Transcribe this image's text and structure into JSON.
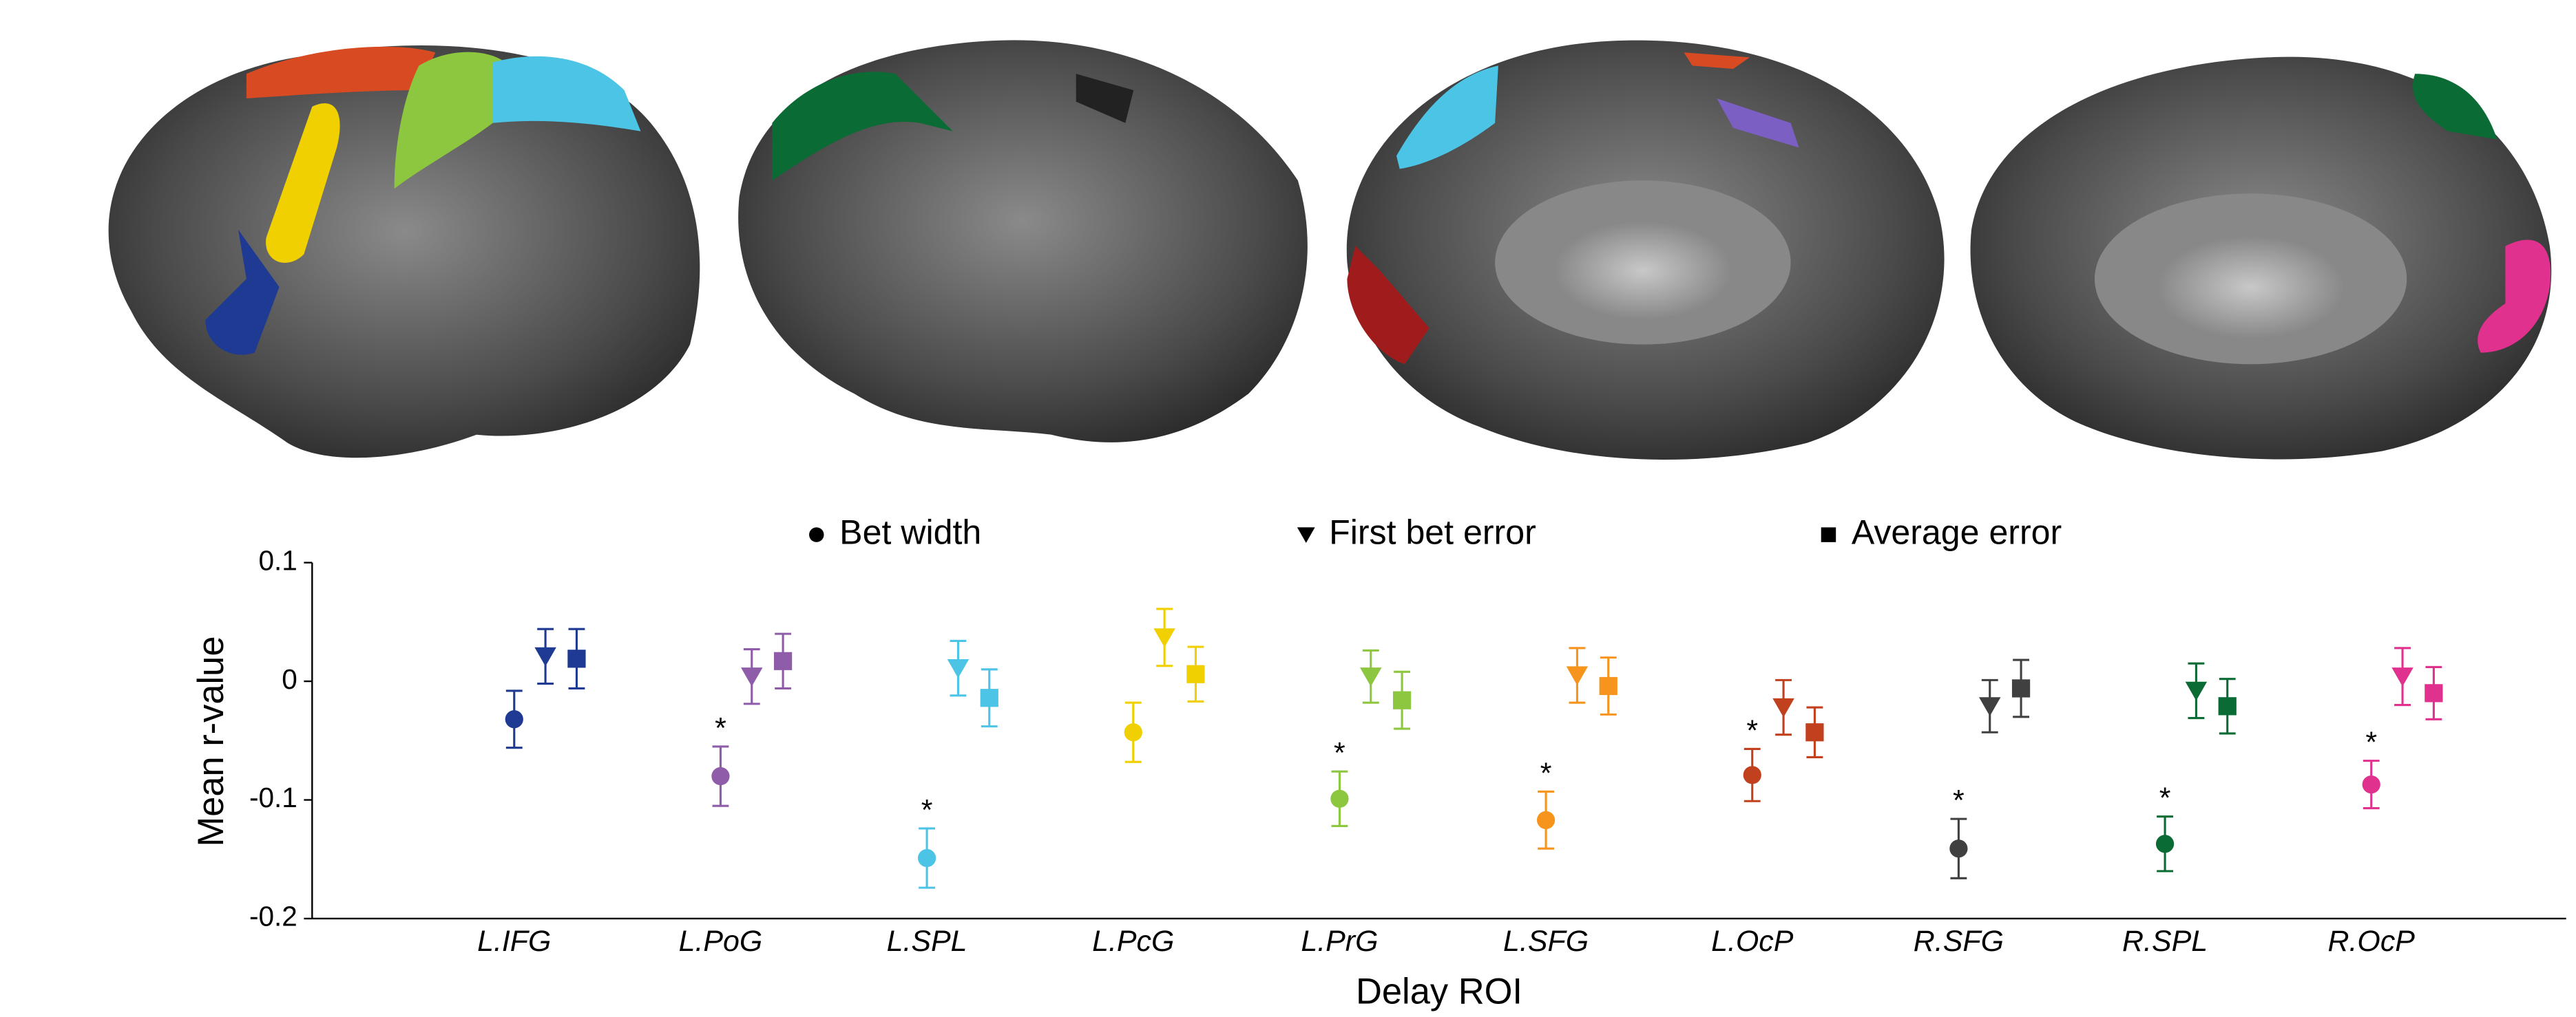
{
  "chart_data": {
    "type": "errorbar",
    "categories": [
      "L.IFG",
      "L.PoG",
      "L.SPL",
      "L.PcG",
      "L.PrG",
      "L.SFG",
      "L.OcP",
      "R.SFG",
      "R.SPL",
      "R.OcP"
    ],
    "colors": [
      "#1f3a93",
      "#8e5ca8",
      "#4cc4e6",
      "#f0d000",
      "#8dc63f",
      "#f7941d",
      "#c1401d",
      "#404040",
      "#0b6b35",
      "#e0318f"
    ],
    "series": [
      {
        "name": "Bet width",
        "marker": "circle",
        "values": [
          -0.032,
          -0.08,
          -0.149,
          -0.043,
          -0.099,
          -0.117,
          -0.079,
          -0.141,
          -0.137,
          -0.087
        ],
        "errors": [
          0.024,
          0.025,
          0.025,
          0.025,
          0.023,
          0.024,
          0.022,
          0.025,
          0.023,
          0.02
        ],
        "significant": [
          false,
          true,
          true,
          false,
          true,
          true,
          true,
          true,
          true,
          true
        ]
      },
      {
        "name": "First bet error",
        "marker": "triangle",
        "values": [
          0.021,
          0.004,
          0.011,
          0.037,
          0.004,
          0.005,
          -0.022,
          -0.021,
          -0.008,
          0.004
        ],
        "errors": [
          0.023,
          0.023,
          0.023,
          0.024,
          0.022,
          0.023,
          0.023,
          0.022,
          0.023,
          0.024
        ]
      },
      {
        "name": "Average error",
        "marker": "square",
        "values": [
          0.019,
          0.017,
          -0.014,
          0.006,
          -0.016,
          -0.004,
          -0.043,
          -0.006,
          -0.021,
          -0.01
        ],
        "errors": [
          0.025,
          0.023,
          0.024,
          0.023,
          0.024,
          0.024,
          0.021,
          0.024,
          0.023,
          0.022
        ]
      }
    ],
    "significance_label": "*",
    "x_label": "Delay ROI",
    "y_label": "Mean r-value",
    "ylim": [
      -0.2,
      0.1
    ],
    "yticks": [
      0.1,
      0,
      -0.1,
      -0.2
    ]
  }
}
